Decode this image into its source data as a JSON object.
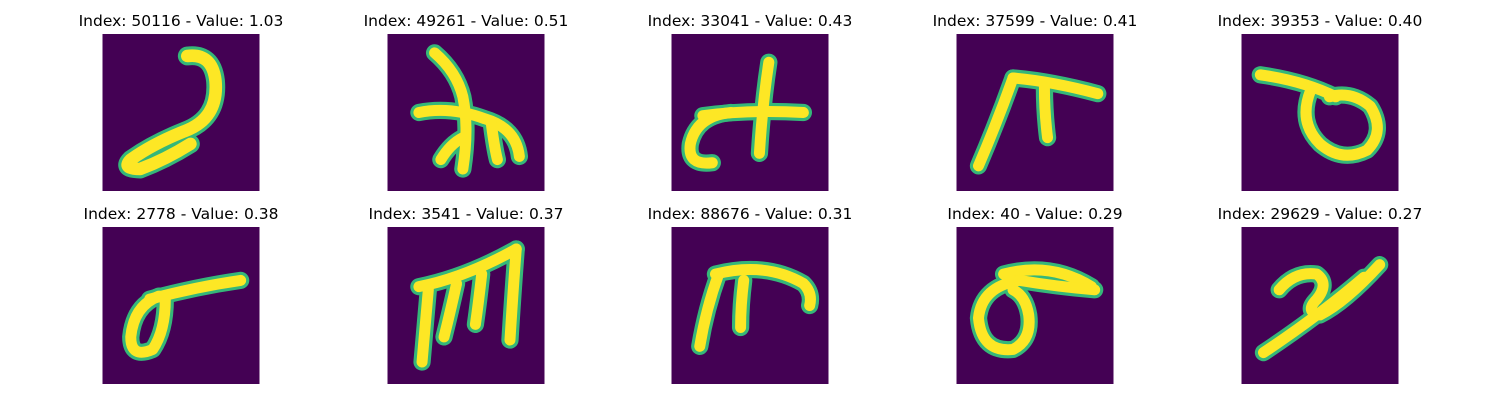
{
  "figure": {
    "background": "#ffffff",
    "image_background": "#440154",
    "stroke_color": "#fde725",
    "stroke_edge_color": "#35b779",
    "panels": [
      {
        "title": "Index: 50116 - Value: 1.03",
        "glyph": "hook-stroke"
      },
      {
        "title": "Index: 49261 - Value: 0.51",
        "glyph": "branched-cross"
      },
      {
        "title": "Index: 33041 - Value: 0.43",
        "glyph": "c-plus"
      },
      {
        "title": "Index: 37599 - Value: 0.41",
        "glyph": "pi-like"
      },
      {
        "title": "Index: 39353 - Value: 0.40",
        "glyph": "loop-with-bar"
      },
      {
        "title": "Index: 2778 - Value: 0.38",
        "glyph": "sigma-like"
      },
      {
        "title": "Index: 3541 - Value: 0.37",
        "glyph": "triple-stem"
      },
      {
        "title": "Index: 88676 - Value: 0.31",
        "glyph": "arch-with-stem"
      },
      {
        "title": "Index: 40 - Value: 0.29",
        "glyph": "sigma-wide"
      },
      {
        "title": "Index: 29629 - Value: 0.27",
        "glyph": "diagonal-curl"
      }
    ]
  }
}
